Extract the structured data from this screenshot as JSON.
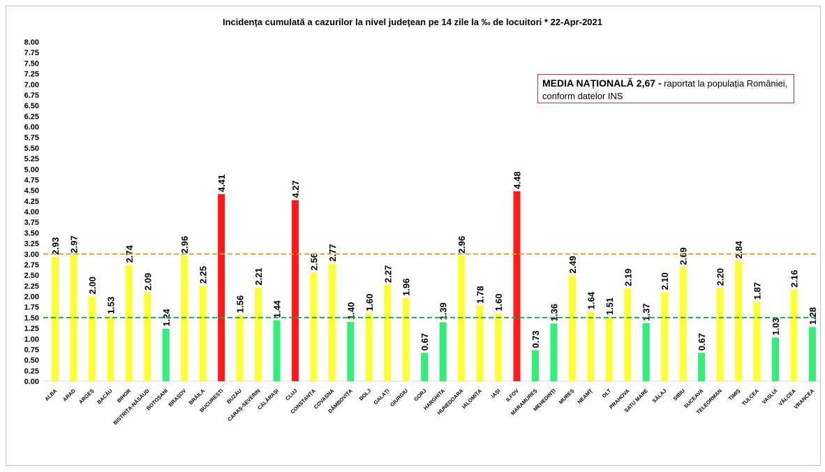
{
  "chart_data": {
    "type": "bar",
    "title": "Incidența cumulată a cazurilor la nivel județean pe 14 zile   la ‰ de locuitori  *   22-Apr-2021",
    "ylim": [
      0,
      8
    ],
    "ytick_step": 0.25,
    "grid": false,
    "categories": [
      "ALBA",
      "ARAD",
      "ARGEȘ",
      "BACĂU",
      "BIHOR",
      "BISTRIȚA-NĂSĂUD",
      "BOTOȘANI",
      "BRAȘOV",
      "BRĂILA",
      "BUCUREȘTI",
      "BUZĂU",
      "CARAȘ-SEVERIN",
      "CĂLĂRAȘI",
      "CLUJ",
      "CONSTANȚA",
      "COVASNA",
      "DÂMBOVIȚA",
      "DOLJ",
      "GALAȚI",
      "GIURGIU",
      "GORJ",
      "HARGHITA",
      "HUNEDOARA",
      "IALOMIȚA",
      "IAȘI",
      "ILFOV",
      "MARAMUREȘ",
      "MEHEDINȚI",
      "MUREȘ",
      "NEAMȚ",
      "OLT",
      "PRAHOVA",
      "SATU MARE",
      "SĂLAJ",
      "SIBIU",
      "SUCEAVA",
      "TELEORMAN",
      "TIMIȘ",
      "TULCEA",
      "VASLUI",
      "VÂLCEA",
      "VRANCEA"
    ],
    "values": [
      2.93,
      2.97,
      2.0,
      1.53,
      2.74,
      2.09,
      1.24,
      2.96,
      2.25,
      4.41,
      1.56,
      2.21,
      1.44,
      4.27,
      2.56,
      2.77,
      1.4,
      1.6,
      2.27,
      1.96,
      0.67,
      1.39,
      2.96,
      1.78,
      1.6,
      4.48,
      0.73,
      1.36,
      2.49,
      1.64,
      1.51,
      2.19,
      1.37,
      2.1,
      2.69,
      0.67,
      2.2,
      2.84,
      1.87,
      1.03,
      2.16,
      1.28
    ],
    "bar_colors": [
      "y",
      "y",
      "y",
      "y",
      "y",
      "y",
      "g",
      "y",
      "y",
      "r",
      "y",
      "y",
      "g",
      "r",
      "y",
      "y",
      "g",
      "y",
      "y",
      "y",
      "g",
      "g",
      "y",
      "y",
      "y",
      "r",
      "g",
      "g",
      "y",
      "y",
      "y",
      "y",
      "g",
      "y",
      "y",
      "g",
      "y",
      "y",
      "y",
      "g",
      "y",
      "g"
    ],
    "color_map": {
      "y": "#ffff33",
      "g": "#33ee77",
      "r": "#ff1a1a"
    },
    "reference_lines": [
      {
        "value": 3.0,
        "color": "#f0a020",
        "style": "dashed"
      },
      {
        "value": 1.5,
        "color": "#22aa44",
        "style": "dashed"
      }
    ]
  },
  "note": {
    "bold": "MEDIA NAȚIONALĂ 2,67 -",
    "text": " raportat la populația României, conform datelor INS"
  }
}
